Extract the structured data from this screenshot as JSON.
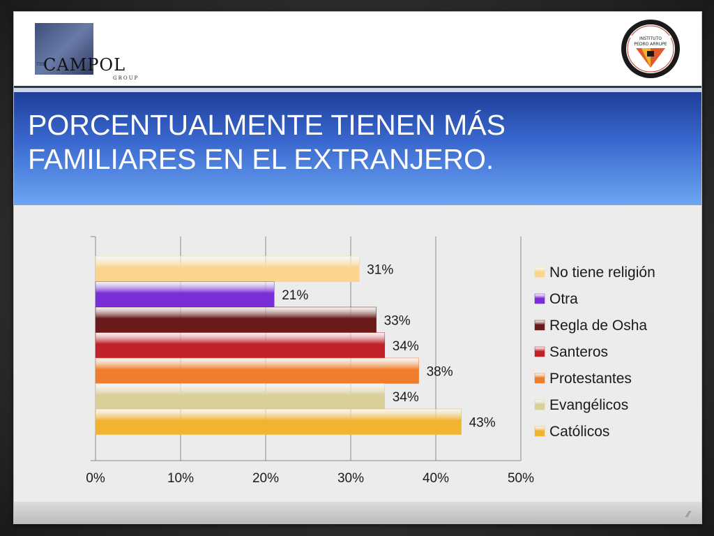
{
  "title": "PORCENTUALMENTE TIENEN MÁS FAMILIARES EN EL EXTRANJERO.",
  "logos": {
    "left": {
      "the": "THE",
      "word": "CAMPOL",
      "group": "GROUP"
    },
    "right": {
      "line1": "INSTITUTO",
      "line2": "PEDRO ARRUPE"
    }
  },
  "chart_data": {
    "type": "bar",
    "orientation": "horizontal",
    "categories": [
      "No tiene religión",
      "Otra",
      "Regla de Osha",
      "Santeros",
      "Protestantes",
      "Evangélicos",
      "Católicos"
    ],
    "values": [
      31,
      21,
      33,
      34,
      38,
      34,
      43
    ],
    "data_labels": [
      "31%",
      "21%",
      "33%",
      "34%",
      "38%",
      "34%",
      "43%"
    ],
    "colors": [
      "#fbd48e",
      "#7a2ed6",
      "#6b1a1a",
      "#c0222a",
      "#ef7d2b",
      "#d8cf9a",
      "#f0b431"
    ],
    "xlim": [
      0,
      50
    ],
    "xticks": [
      "0%",
      "10%",
      "20%",
      "30%",
      "40%",
      "50%"
    ],
    "grid": "vertical",
    "legend": "right"
  }
}
